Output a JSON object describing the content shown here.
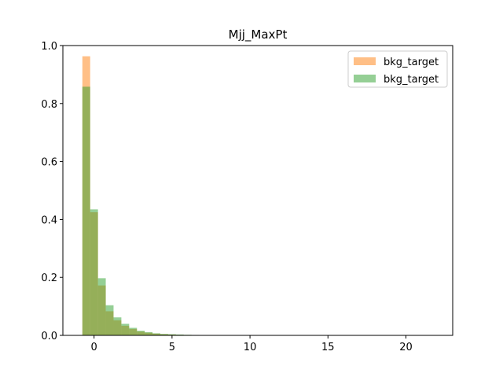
{
  "chart_data": {
    "type": "histogram",
    "title": "Mjj_MaxPt",
    "xlabel": "",
    "ylabel": "",
    "xlim": [
      -2,
      23
    ],
    "ylim": [
      0,
      1.0
    ],
    "xticks": [
      0,
      5,
      10,
      15,
      20
    ],
    "yticks": [
      0.0,
      0.2,
      0.4,
      0.6,
      0.8,
      1.0
    ],
    "xtick_labels": [
      "0",
      "5",
      "10",
      "15",
      "20"
    ],
    "ytick_labels": [
      "0.0",
      "0.2",
      "0.4",
      "0.6",
      "0.8",
      "1.0"
    ],
    "legend_position": "top-right",
    "bin_edges": [
      -0.75,
      -0.25,
      0.25,
      0.75,
      1.25,
      1.75,
      2.25,
      2.75,
      3.25,
      3.75,
      4.25,
      4.75,
      5.25,
      5.75,
      6.25,
      6.75,
      7.25,
      7.75,
      8.25,
      8.75,
      9.25,
      9.75,
      10.25,
      10.75,
      11.25,
      11.75,
      12.25,
      12.75,
      13.25,
      13.75,
      14.25,
      14.75,
      15.25,
      15.75,
      16.25,
      16.75,
      17.25,
      17.75,
      18.25,
      18.75,
      19.25,
      19.75,
      20.25,
      20.75,
      21.25,
      21.75
    ],
    "series": [
      {
        "name": "bkg_target",
        "color": "#ff7f0e",
        "values": [
          0.963,
          0.425,
          0.172,
          0.083,
          0.052,
          0.033,
          0.022,
          0.013,
          0.009,
          0.006,
          0.004,
          0.003,
          0.002,
          0.0015,
          0.001,
          0.001,
          0.0005,
          0.0005,
          0.0005,
          0.0005,
          0.0003,
          0.0003,
          0.0002,
          0.0002,
          0.0002,
          0.0002,
          0.0001,
          0.0001,
          0.0001,
          0.0001,
          0,
          0,
          0,
          0,
          0,
          0,
          0,
          0,
          0,
          0,
          0,
          0,
          0,
          0,
          0
        ]
      },
      {
        "name": "bkg_target",
        "color": "#2ca02c",
        "values": [
          0.858,
          0.435,
          0.197,
          0.104,
          0.062,
          0.04,
          0.026,
          0.016,
          0.011,
          0.007,
          0.005,
          0.004,
          0.003,
          0.002,
          0.0015,
          0.001,
          0.001,
          0.0005,
          0.0005,
          0.0005,
          0.0004,
          0.0003,
          0.0003,
          0.0002,
          0.0002,
          0.0002,
          0.0001,
          0.0001,
          0.0001,
          0.0001,
          0,
          0,
          0,
          0,
          0,
          0,
          0,
          0,
          0,
          0,
          0,
          0,
          0,
          0,
          0
        ]
      }
    ],
    "alpha": 0.5
  }
}
